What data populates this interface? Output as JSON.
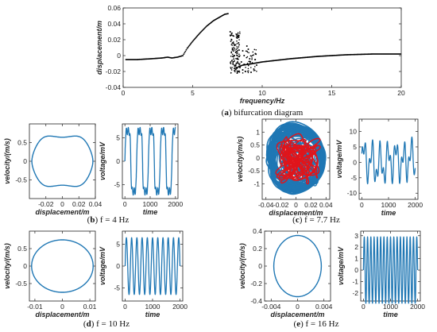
{
  "colors": {
    "blue": "#1f77b4",
    "red": "#e0151b",
    "black": "#000000"
  },
  "chart_data": [
    {
      "id": "a",
      "type": "scatter",
      "caption_letter": "a",
      "caption_text": " bifurcation diagram",
      "xlabel": "frequency/Hz",
      "ylabel": "displacement/m",
      "xlim": [
        0,
        20
      ],
      "ylim": [
        -0.04,
        0.06
      ],
      "xticks": [
        0,
        5,
        10,
        15,
        20
      ],
      "yticks": [
        -0.04,
        -0.02,
        0,
        0.02,
        0.04,
        0.06
      ],
      "xtick_labels": [
        "0",
        "5",
        "10",
        "15",
        "20"
      ],
      "ytick_labels": [
        "-0.04",
        "-0.02",
        "0",
        "0.02",
        "0.04",
        "0.06"
      ],
      "series": [
        {
          "points": [
            [
              0.2,
              -0.005
            ],
            [
              1.0,
              -0.005
            ],
            [
              2.0,
              -0.004
            ],
            [
              2.8,
              -0.003
            ],
            [
              3.2,
              -0.002
            ],
            [
              3.5,
              -0.003
            ],
            [
              3.9,
              -0.002
            ],
            [
              4.3,
              0.0
            ],
            [
              4.6,
              0.009
            ],
            [
              5.0,
              0.018
            ],
            [
              5.5,
              0.028
            ],
            [
              6.0,
              0.037
            ],
            [
              6.5,
              0.044
            ],
            [
              7.0,
              0.049
            ],
            [
              7.3,
              0.052
            ],
            [
              7.6,
              0.053
            ],
            [
              7.8,
              0.026
            ],
            [
              8.0,
              -0.019
            ],
            [
              8.3,
              -0.014
            ],
            [
              8.6,
              -0.012
            ],
            [
              9.0,
              -0.011
            ],
            [
              10.0,
              -0.008
            ],
            [
              12.0,
              -0.004
            ],
            [
              14.0,
              -0.001
            ],
            [
              16.0,
              0.001
            ],
            [
              18.0,
              0.002
            ],
            [
              20.0,
              0.002
            ]
          ]
        },
        {
          "points": [
            [
              7.7,
              0.03
            ],
            [
              7.8,
              0.028
            ],
            [
              7.9,
              0.025
            ],
            [
              7.8,
              0.02
            ],
            [
              7.9,
              0.016
            ],
            [
              8.0,
              0.013
            ],
            [
              7.9,
              0.008
            ],
            [
              8.1,
              0.004
            ],
            [
              8.0,
              0.0
            ],
            [
              8.2,
              -0.004
            ],
            [
              7.9,
              -0.008
            ],
            [
              8.1,
              -0.012
            ],
            [
              8.0,
              -0.016
            ],
            [
              8.3,
              -0.02
            ],
            [
              8.2,
              -0.022
            ],
            [
              8.4,
              -0.015
            ],
            [
              8.5,
              -0.008
            ],
            [
              8.6,
              -0.018
            ],
            [
              8.7,
              -0.011
            ],
            [
              8.8,
              -0.02
            ],
            [
              9.0,
              0.008
            ],
            [
              9.1,
              -0.004
            ],
            [
              9.2,
              -0.021
            ],
            [
              9.4,
              -0.017
            ],
            [
              9.5,
              -0.005
            ],
            [
              9.6,
              -0.012
            ],
            [
              8.2,
              0.022
            ],
            [
              8.3,
              0.016
            ],
            [
              8.6,
              0.006
            ],
            [
              8.7,
              0.0
            ],
            [
              8.9,
              0.012
            ]
          ]
        }
      ]
    },
    {
      "id": "b_phase",
      "type": "line",
      "caption_letter": "b",
      "caption_text": " f = 4 Hz",
      "xlabel": "displacement/m",
      "ylabel": "velocity/(m/s)",
      "xlim": [
        -0.04,
        0.04
      ],
      "ylim": [
        -1.0,
        1.0
      ],
      "xticks": [
        -0.02,
        0,
        0.02,
        0.04
      ],
      "yticks": [
        -0.5,
        0,
        0.5
      ],
      "xtick_labels": [
        "-0.02",
        "0",
        "0.02",
        "0.04"
      ],
      "ytick_labels": [
        "-0.5",
        "0",
        "0.5"
      ],
      "series": [
        {
          "shape": "phase",
          "amplitude_x": 0.037,
          "amplitude_y": 0.73,
          "harmonic": 3,
          "harmonic_amp": 0.12
        }
      ]
    },
    {
      "id": "b_time",
      "type": "line",
      "xlabel": "time",
      "ylabel": "voltage/mV",
      "xlim": [
        -100,
        2100
      ],
      "ylim": [
        -8,
        8
      ],
      "xticks": [
        0,
        1000,
        2000
      ],
      "yticks": [
        -5,
        0,
        5
      ],
      "xtick_labels": [
        "0",
        "1000",
        "2000"
      ],
      "ytick_labels": [
        "-5",
        "0",
        "5"
      ],
      "series": [
        {
          "shape": "square",
          "amplitude": 6.5,
          "periods": 4.3,
          "noise": 0.8,
          "t_range": [
            0,
            2000
          ]
        }
      ]
    },
    {
      "id": "c_phase",
      "type": "scatter",
      "caption_letter": "c",
      "caption_text": " f = 7.7 Hz",
      "xlabel": "displacement/m",
      "ylabel": "velocity/(m/s)",
      "xlim": [
        -0.045,
        0.045
      ],
      "ylim": [
        -1.6,
        1.5
      ],
      "xticks": [
        -0.04,
        -0.02,
        0,
        0.02,
        0.04
      ],
      "yticks": [
        -1,
        -0.5,
        0,
        0.5,
        1
      ],
      "xtick_labels": [
        "-0.04",
        "-0.02",
        "0",
        "0.02",
        "0.04"
      ],
      "ytick_labels": [
        "-1",
        "-0.5",
        "0",
        "0.5",
        "1"
      ],
      "series": [
        {
          "shape": "chaos_blue",
          "x_range": [
            -0.038,
            0.038
          ],
          "y_range": [
            -1.4,
            1.3
          ]
        },
        {
          "shape": "chaos_red",
          "x_range": [
            -0.028,
            0.028
          ],
          "y_range": [
            -1.1,
            0.9
          ]
        }
      ]
    },
    {
      "id": "c_time",
      "type": "line",
      "xlabel": "time",
      "ylabel": "voltage/mV",
      "xlim": [
        -100,
        2100
      ],
      "ylim": [
        -12,
        14
      ],
      "xticks": [
        0,
        1000,
        2000
      ],
      "yticks": [
        -10,
        -5,
        0,
        5,
        10
      ],
      "xtick_labels": [
        "0",
        "1000",
        "2000"
      ],
      "ytick_labels": [
        "-10",
        "-5",
        "0",
        "5",
        "10"
      ],
      "series": [
        {
          "shape": "chaotic",
          "t_range": [
            0,
            2000
          ],
          "amplitude": 9
        }
      ]
    },
    {
      "id": "d_phase",
      "type": "line",
      "caption_letter": "d",
      "caption_text": " f = 10 Hz",
      "xlabel": "displacement/m",
      "ylabel": "velocity/(m/s)",
      "xlim": [
        -0.012,
        0.012
      ],
      "ylim": [
        -1.0,
        1.0
      ],
      "xticks": [
        -0.01,
        0,
        0.01
      ],
      "yticks": [
        -0.5,
        0,
        0.5
      ],
      "xtick_labels": [
        "-0.01",
        "0",
        "0.01"
      ],
      "ytick_labels": [
        "-0.5",
        "0",
        "0.5"
      ],
      "series": [
        {
          "shape": "ellipse",
          "amplitude_x": 0.0112,
          "amplitude_y": 0.75
        }
      ]
    },
    {
      "id": "d_time",
      "type": "line",
      "xlabel": "time",
      "ylabel": "voltage/mV",
      "xlim": [
        -100,
        2100
      ],
      "ylim": [
        -8,
        8
      ],
      "xticks": [
        0,
        1000,
        2000
      ],
      "yticks": [
        -5,
        0,
        5
      ],
      "xtick_labels": [
        "0",
        "1000",
        "2000"
      ],
      "ytick_labels": [
        "-5",
        "0",
        "5"
      ],
      "series": [
        {
          "shape": "sine",
          "amplitude": 6.5,
          "periods": 10.5,
          "t_range": [
            0,
            2000
          ]
        }
      ]
    },
    {
      "id": "e_phase",
      "type": "line",
      "caption_letter": "e",
      "caption_text": " f = 16 Hz",
      "xlabel": "displacement/m",
      "ylabel": "velocity/(m/s)",
      "xlim": [
        -0.005,
        0.005
      ],
      "ylim": [
        -0.4,
        0.4
      ],
      "xticks": [
        -0.004,
        0,
        0.004
      ],
      "yticks": [
        -0.4,
        -0.2,
        0,
        0.2,
        0.4
      ],
      "xtick_labels": [
        "-0.004",
        "0",
        "0.004"
      ],
      "ytick_labels": [
        "-0.4",
        "-0.2",
        "0",
        "0.2",
        "0.4"
      ],
      "series": [
        {
          "shape": "ellipse",
          "amplitude_x": 0.0036,
          "amplitude_y": 0.35
        }
      ]
    },
    {
      "id": "e_time",
      "type": "line",
      "xlabel": "time",
      "ylabel": "voltage/mV",
      "xlim": [
        -100,
        2100
      ],
      "ylim": [
        -2.7,
        3.4
      ],
      "xticks": [
        0,
        1000,
        2000
      ],
      "yticks": [
        -2,
        -1,
        0,
        1,
        2,
        3
      ],
      "xtick_labels": [
        "0",
        "1000",
        "2000"
      ],
      "ytick_labels": [
        "-2",
        "-1",
        "0",
        "1",
        "2",
        "3"
      ],
      "series": [
        {
          "shape": "sine",
          "amplitude": 2.9,
          "periods": 16.5,
          "t_range": [
            0,
            2000
          ]
        }
      ]
    }
  ]
}
